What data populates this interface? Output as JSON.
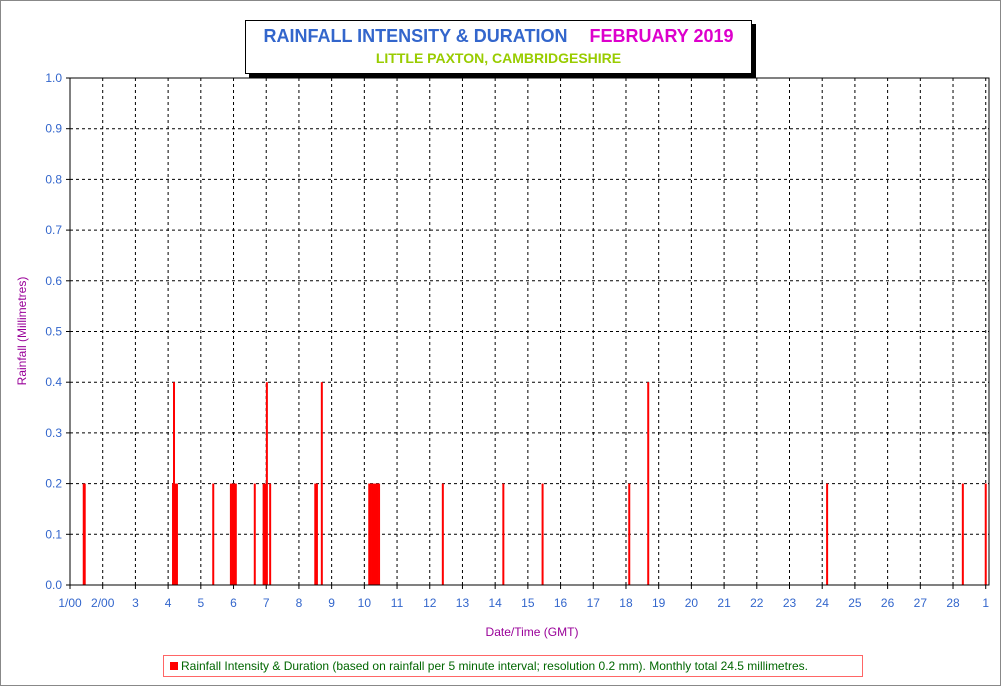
{
  "chart_data": {
    "type": "bar",
    "title": "RAINFALL INTENSITY & DURATION",
    "title_period": "FEBRUARY 2019",
    "subtitle": "LITTLE PAXTON, CAMBRIDGESHIRE",
    "xlabel": "Date/Time (GMT)",
    "ylabel": "Rainfall (Millimetres)",
    "ylim": [
      0,
      1.0
    ],
    "xlim": [
      1.0,
      29.1
    ],
    "y_ticks": [
      0.0,
      0.1,
      0.2,
      0.3,
      0.4,
      0.5,
      0.6,
      0.7,
      0.8,
      0.9,
      1.0
    ],
    "y_tick_labels": [
      "0.0",
      "0.1",
      "0.2",
      "0.3",
      "0.4",
      "0.5",
      "0.6",
      "0.7",
      "0.8",
      "0.9",
      "1.0"
    ],
    "x_ticks": [
      1,
      2,
      3,
      4,
      5,
      6,
      7,
      8,
      9,
      10,
      11,
      12,
      13,
      14,
      15,
      16,
      17,
      18,
      19,
      20,
      21,
      22,
      23,
      24,
      25,
      26,
      27,
      28,
      29
    ],
    "x_tick_labels": [
      "1/00",
      "2/00",
      "3",
      "4",
      "5",
      "6",
      "7",
      "8",
      "9",
      "10",
      "11",
      "12",
      "13",
      "14",
      "15",
      "16",
      "17",
      "18",
      "19",
      "20",
      "21",
      "22",
      "23",
      "24",
      "25",
      "26",
      "27",
      "28",
      "1"
    ],
    "grid": true,
    "legend_position": "bottom",
    "colors": {
      "bars": "#ff0000",
      "grid": "#000000"
    },
    "series": [
      {
        "name": "Rainfall Intensity & Duration (based on rainfall per 5 minute interval; resolution 0.2 mm). Monthly total 24.5 millimetres.",
        "points": [
          {
            "x": 1.42,
            "y": 0.2
          },
          {
            "x": 1.45,
            "y": 0.2
          },
          {
            "x": 4.15,
            "y": 0.2
          },
          {
            "x": 4.18,
            "y": 0.4
          },
          {
            "x": 4.22,
            "y": 0.2
          },
          {
            "x": 4.27,
            "y": 0.2
          },
          {
            "x": 5.38,
            "y": 0.2
          },
          {
            "x": 5.92,
            "y": 0.2
          },
          {
            "x": 5.97,
            "y": 0.2
          },
          {
            "x": 6.02,
            "y": 0.2
          },
          {
            "x": 6.07,
            "y": 0.2
          },
          {
            "x": 6.65,
            "y": 0.2
          },
          {
            "x": 6.92,
            "y": 0.2
          },
          {
            "x": 6.97,
            "y": 0.2
          },
          {
            "x": 7.02,
            "y": 0.4
          },
          {
            "x": 7.12,
            "y": 0.2
          },
          {
            "x": 8.5,
            "y": 0.2
          },
          {
            "x": 8.55,
            "y": 0.2
          },
          {
            "x": 8.7,
            "y": 0.4
          },
          {
            "x": 10.15,
            "y": 0.2
          },
          {
            "x": 10.2,
            "y": 0.2
          },
          {
            "x": 10.25,
            "y": 0.2
          },
          {
            "x": 10.3,
            "y": 0.2
          },
          {
            "x": 10.35,
            "y": 0.2
          },
          {
            "x": 10.4,
            "y": 0.2
          },
          {
            "x": 10.45,
            "y": 0.2
          },
          {
            "x": 12.4,
            "y": 0.2
          },
          {
            "x": 14.25,
            "y": 0.2
          },
          {
            "x": 15.45,
            "y": 0.2
          },
          {
            "x": 18.1,
            "y": 0.2
          },
          {
            "x": 18.68,
            "y": 0.4
          },
          {
            "x": 24.15,
            "y": 0.2
          },
          {
            "x": 28.3,
            "y": 0.2
          },
          {
            "x": 29.0,
            "y": 0.2
          }
        ]
      }
    ]
  }
}
